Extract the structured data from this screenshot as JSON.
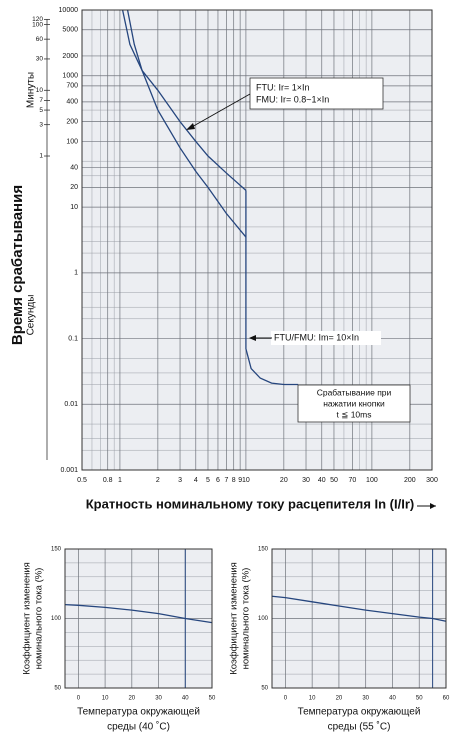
{
  "chart_data": [
    {
      "type": "line",
      "xscale": "log",
      "yscale": "log",
      "grid": true,
      "xlabel": "Кратность номинальному току расцепителя In (I/Ir)",
      "ylabel": "Время срабатывания",
      "y2label_top": "Минуты",
      "y2label_bottom": "Секунды",
      "xlim": [
        0.5,
        300
      ],
      "xticks": [
        0.5,
        0.8,
        1,
        2,
        3,
        4,
        5,
        6,
        7,
        8,
        9,
        10,
        20,
        30,
        40,
        50,
        70,
        100,
        200,
        300
      ],
      "xminorticks": [
        0.6,
        0.7,
        0.9,
        60,
        80,
        90
      ],
      "ylim": [
        0.001,
        10000
      ],
      "yticks": [
        0.001,
        0.01,
        0.1,
        1,
        10,
        20,
        40,
        100,
        200,
        400,
        700,
        1000,
        2000,
        5000,
        10000
      ],
      "yminorticks": [
        0.002,
        0.003,
        0.005,
        0.02,
        0.03,
        0.05,
        0.2,
        0.3,
        0.5,
        2,
        3,
        5,
        30,
        50,
        300
      ],
      "y2lim": [
        1.667e-05,
        166.7
      ],
      "y2ticks": [
        1,
        3,
        5,
        7,
        10,
        30,
        60,
        100,
        120
      ],
      "series": [
        {
          "color": "#26467e",
          "x": [
            1.05,
            1.2,
            1.5,
            2,
            3,
            4,
            5,
            7,
            10
          ],
          "values": [
            10000,
            3000,
            1200,
            600,
            200,
            100,
            60,
            33,
            18
          ]
        },
        {
          "color": "#26467e",
          "x": [
            1.15,
            1.3,
            1.5,
            2,
            3,
            4,
            5,
            7,
            10
          ],
          "values": [
            10000,
            3000,
            1200,
            300,
            80,
            35,
            20,
            8,
            3.5
          ]
        },
        {
          "color": "#26467e",
          "x": [
            10,
            10,
            11,
            13,
            16,
            20,
            26
          ],
          "values": [
            18,
            0.07,
            0.035,
            0.025,
            0.021,
            0.02,
            0.02
          ]
        }
      ],
      "annotations": [
        [
          "FTU: Ir= 1×In",
          "FMU: Ir= 0.8~1×In"
        ],
        [
          "FTU/FMU: Im= 10×In"
        ],
        [
          "Срабатывание при",
          "нажатии кнопки",
          "t ≦ 10ms"
        ]
      ]
    },
    {
      "type": "line",
      "grid": true,
      "xlabel": [
        "Температура окружающей",
        "среды (40 ˚C)"
      ],
      "ylabel": [
        "Коэффициент изменения",
        "номинального тока (%)"
      ],
      "xlim": [
        -5,
        50
      ],
      "xticks": [
        0,
        10,
        20,
        30,
        40,
        50
      ],
      "ylim": [
        50,
        150
      ],
      "yticks": [
        50,
        100,
        150
      ],
      "yminorticks": [
        60,
        70,
        80,
        90,
        110,
        120,
        130,
        140
      ],
      "marker_x": 40,
      "series": [
        {
          "color": "#26467e",
          "x": [
            -5,
            0,
            10,
            20,
            30,
            40,
            50
          ],
          "values": [
            110,
            109.5,
            108,
            106,
            103.5,
            100,
            97
          ]
        }
      ]
    },
    {
      "type": "line",
      "grid": true,
      "xlabel": [
        "Температура окружающей",
        "среды (55 ˚C)"
      ],
      "ylabel": [
        "Коэффициент изменения",
        "номинального тока (%)"
      ],
      "xlim": [
        -5,
        60
      ],
      "xticks": [
        0,
        10,
        20,
        30,
        40,
        50,
        60
      ],
      "ylim": [
        50,
        150
      ],
      "yticks": [
        50,
        100,
        150
      ],
      "yminorticks": [
        60,
        70,
        80,
        90,
        110,
        120,
        130,
        140
      ],
      "marker_x": 55,
      "series": [
        {
          "color": "#26467e",
          "x": [
            -5,
            0,
            10,
            20,
            30,
            40,
            50,
            55,
            60
          ],
          "values": [
            116,
            115,
            112,
            109,
            106,
            103.5,
            101,
            100,
            98
          ]
        }
      ]
    }
  ]
}
